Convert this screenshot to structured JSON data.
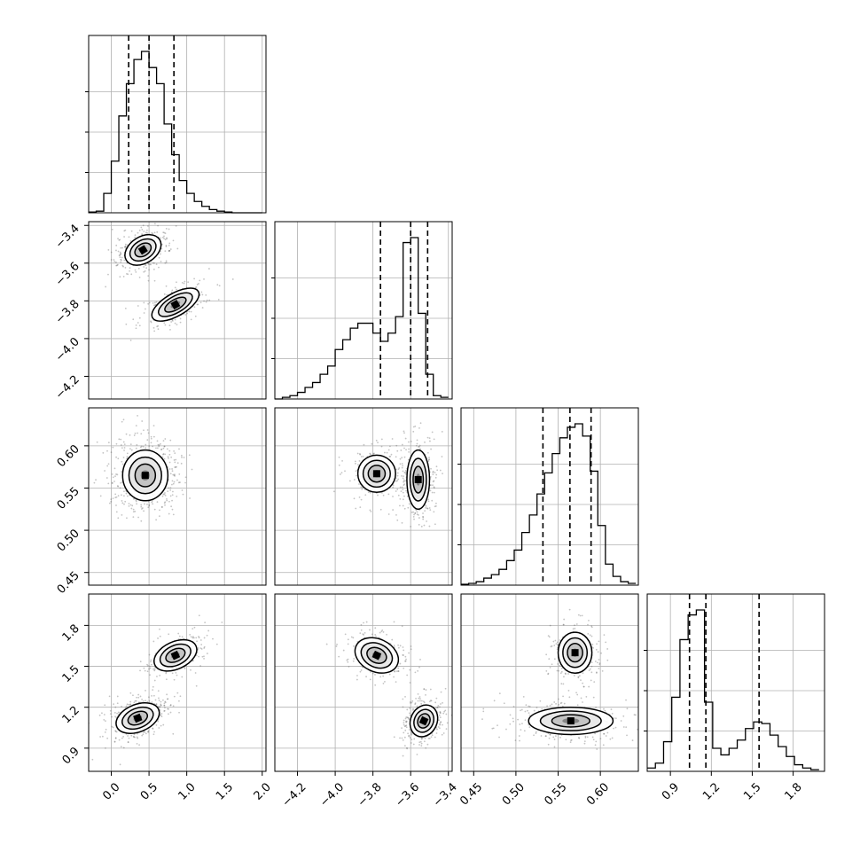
{
  "chart_data": {
    "type": "corner",
    "title": "",
    "parameters": [
      {
        "index": 0,
        "axis_ticks": [
          "0.0",
          "0.5",
          "1.0",
          "1.5",
          "2.0"
        ],
        "tick_values": [
          0.0,
          0.5,
          1.0,
          1.5,
          2.0
        ],
        "range": [
          -0.3,
          2.05
        ],
        "quantiles": [
          0.23,
          0.5,
          0.83
        ]
      },
      {
        "index": 1,
        "axis_ticks": [
          "−4.2",
          "−4.0",
          "−3.8",
          "−3.6",
          "−3.4"
        ],
        "tick_values": [
          -4.2,
          -4.0,
          -3.8,
          -3.6,
          -3.4
        ],
        "range": [
          -4.32,
          -3.38
        ],
        "quantiles": [
          -3.76,
          -3.6,
          -3.51
        ]
      },
      {
        "index": 2,
        "axis_ticks": [
          "0.45",
          "0.50",
          "0.55",
          "0.60"
        ],
        "tick_values": [
          0.45,
          0.5,
          0.55,
          0.6
        ],
        "range": [
          0.435,
          0.645
        ],
        "quantiles": [
          0.532,
          0.564,
          0.589
        ]
      },
      {
        "index": 3,
        "axis_ticks": [
          "0.9",
          "1.2",
          "1.5",
          "1.8"
        ],
        "tick_values": [
          0.9,
          1.2,
          1.5,
          1.8
        ],
        "range": [
          0.73,
          2.03
        ],
        "quantiles": [
          1.04,
          1.16,
          1.55
        ]
      }
    ],
    "histograms": [
      {
        "param": 0,
        "bin_edges": [
          -0.3,
          -0.2,
          -0.1,
          0.0,
          0.1,
          0.2,
          0.3,
          0.4,
          0.5,
          0.6,
          0.7,
          0.8,
          0.9,
          1.0,
          1.1,
          1.2,
          1.3,
          1.4,
          1.5,
          1.6,
          1.7,
          1.8,
          1.9,
          2.0
        ],
        "counts": [
          0.005,
          0.01,
          0.12,
          0.32,
          0.6,
          0.8,
          0.95,
          1.0,
          0.9,
          0.8,
          0.55,
          0.36,
          0.2,
          0.12,
          0.07,
          0.04,
          0.02,
          0.01,
          0.005,
          0,
          0,
          0,
          0
        ]
      },
      {
        "param": 1,
        "bin_edges": [
          -4.32,
          -4.28,
          -4.24,
          -4.2,
          -4.16,
          -4.12,
          -4.08,
          -4.04,
          -4.0,
          -3.96,
          -3.92,
          -3.88,
          -3.84,
          -3.8,
          -3.76,
          -3.72,
          -3.68,
          -3.64,
          -3.6,
          -3.56,
          -3.52,
          -3.48,
          -3.44,
          -3.4
        ],
        "counts": [
          0,
          0.01,
          0.02,
          0.04,
          0.07,
          0.1,
          0.15,
          0.2,
          0.3,
          0.36,
          0.43,
          0.46,
          0.46,
          0.4,
          0.35,
          0.4,
          0.5,
          0.95,
          0.98,
          0.52,
          0.15,
          0.02,
          0.01
        ]
      },
      {
        "param": 2,
        "bin_edges": [
          0.435,
          0.444,
          0.453,
          0.462,
          0.471,
          0.48,
          0.489,
          0.498,
          0.507,
          0.516,
          0.525,
          0.534,
          0.543,
          0.552,
          0.561,
          0.57,
          0.579,
          0.588,
          0.597,
          0.606,
          0.615,
          0.624,
          0.633,
          0.642
        ],
        "counts": [
          0.005,
          0.01,
          0.02,
          0.04,
          0.06,
          0.09,
          0.14,
          0.2,
          0.3,
          0.4,
          0.52,
          0.64,
          0.75,
          0.84,
          0.9,
          0.92,
          0.85,
          0.65,
          0.34,
          0.12,
          0.05,
          0.02,
          0.01
        ]
      },
      {
        "param": 3,
        "bin_edges": [
          0.73,
          0.79,
          0.85,
          0.91,
          0.97,
          1.03,
          1.09,
          1.15,
          1.21,
          1.27,
          1.33,
          1.39,
          1.45,
          1.51,
          1.57,
          1.63,
          1.69,
          1.75,
          1.81,
          1.87,
          1.93,
          1.99
        ],
        "counts": [
          0.02,
          0.05,
          0.18,
          0.45,
          0.8,
          0.95,
          0.98,
          0.42,
          0.14,
          0.1,
          0.14,
          0.19,
          0.26,
          0.3,
          0.29,
          0.22,
          0.15,
          0.09,
          0.04,
          0.02,
          0.01
        ]
      }
    ],
    "joint_panels": [
      {
        "x_param": 0,
        "y_param": 1,
        "modes": [
          {
            "cx": 0.42,
            "cy": -3.53,
            "rx": 0.26,
            "ry": 0.07,
            "angle_deg": -32,
            "weight": 0.62
          },
          {
            "cx": 0.85,
            "cy": -3.82,
            "rx": 0.35,
            "ry": 0.06,
            "angle_deg": -30,
            "weight": 0.38
          }
        ]
      },
      {
        "x_param": 0,
        "y_param": 2,
        "modes": [
          {
            "cx": 0.45,
            "cy": 0.565,
            "rx": 0.3,
            "ry": 0.03,
            "angle_deg": 0,
            "weight": 1.0
          }
        ]
      },
      {
        "x_param": 1,
        "y_param": 2,
        "modes": [
          {
            "cx": -3.78,
            "cy": 0.567,
            "rx": 0.1,
            "ry": 0.022,
            "angle_deg": 0,
            "weight": 0.38
          },
          {
            "cx": -3.56,
            "cy": 0.56,
            "rx": 0.06,
            "ry": 0.035,
            "angle_deg": 0,
            "weight": 0.62
          }
        ]
      },
      {
        "x_param": 0,
        "y_param": 3,
        "modes": [
          {
            "cx": 0.35,
            "cy": 1.12,
            "rx": 0.3,
            "ry": 0.1,
            "angle_deg": -22,
            "weight": 0.6
          },
          {
            "cx": 0.85,
            "cy": 1.58,
            "rx": 0.3,
            "ry": 0.1,
            "angle_deg": -25,
            "weight": 0.4
          }
        ]
      },
      {
        "x_param": 1,
        "y_param": 3,
        "modes": [
          {
            "cx": -3.78,
            "cy": 1.58,
            "rx": 0.12,
            "ry": 0.12,
            "angle_deg": 25,
            "weight": 0.4
          },
          {
            "cx": -3.53,
            "cy": 1.1,
            "rx": 0.07,
            "ry": 0.12,
            "angle_deg": 25,
            "weight": 0.6
          }
        ]
      },
      {
        "x_param": 2,
        "y_param": 3,
        "modes": [
          {
            "cx": 0.565,
            "cy": 1.1,
            "rx": 0.05,
            "ry": 0.1,
            "angle_deg": 0,
            "weight": 0.6
          },
          {
            "cx": 0.57,
            "cy": 1.6,
            "rx": 0.02,
            "ry": 0.15,
            "angle_deg": 0,
            "weight": 0.4
          }
        ]
      }
    ],
    "grid": true,
    "colors": {
      "contour": "#000000",
      "density": "#000000",
      "points": "#555555",
      "grid": "#b0b0b0",
      "quantile_line": "#000000"
    }
  }
}
